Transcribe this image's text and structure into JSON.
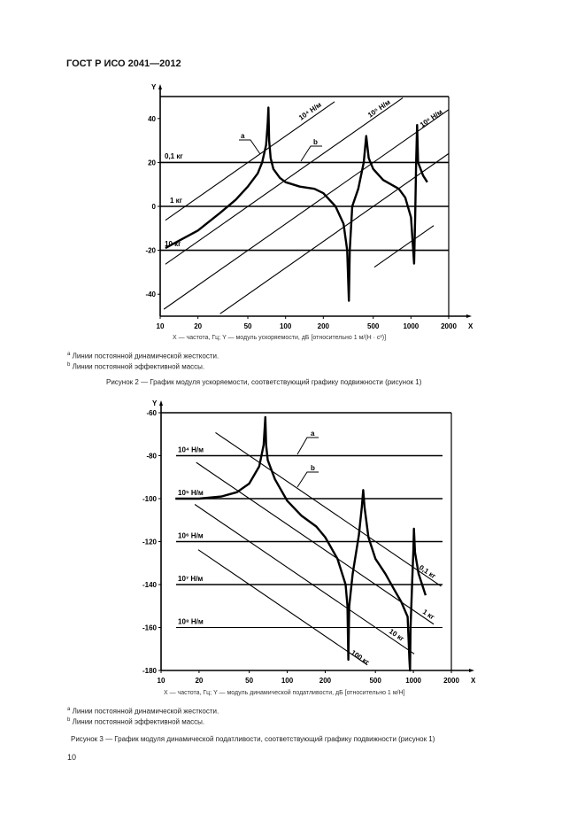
{
  "header": {
    "standard": "ГОСТ Р ИСО 2041—2012"
  },
  "figure2": {
    "axis_caption": "X — частота, Гц; Y — модуль ускоряемости, дБ [относительно 1 м/(Н · с²)]",
    "footnote_a_mark": "a",
    "footnote_a": "Линии постоянной динамической жесткости.",
    "footnote_b_mark": "b",
    "footnote_b": "Линии постоянной эффективной массы.",
    "caption": "Рисунок 2 — График модуля ускоряемости, соответствующий графику подвижности (рисунок 1)"
  },
  "figure3": {
    "axis_caption": "X — частота, Гц; Y — модуль динамической податливости, дБ [относительно 1 м/Н]",
    "footnote_a_mark": "a",
    "footnote_a": "Линии постоянной динамической жесткости.",
    "footnote_b_mark": "b",
    "footnote_b": "Линии постоянной эффективной массы.",
    "caption": "Рисунок 3 — График модуля динамической податливости, соответствующий графику подвижности (рисунок 1)"
  },
  "page_number": "10",
  "chart_data": [
    {
      "type": "line",
      "title": "Рисунок 2",
      "xlabel": "X",
      "ylabel": "Y",
      "xscale": "log",
      "xlim": [
        10,
        2000
      ],
      "ylim": [
        -50,
        50
      ],
      "xticks": [
        10,
        20,
        50,
        100,
        200,
        500,
        1000,
        2000
      ],
      "xtick_labels": [
        "10",
        "20",
        "50",
        "100",
        "200",
        "500",
        "1000",
        "2000"
      ],
      "yticks": [
        40,
        20,
        0,
        -20,
        -40
      ],
      "ytick_labels": [
        "40",
        "20",
        "0",
        "-20",
        "-40"
      ],
      "mass_lines": [
        {
          "label": "0,1 кг",
          "y": 20
        },
        {
          "label": "1 кг",
          "y": 0
        },
        {
          "label": "10 кг",
          "y": -20
        }
      ],
      "stiffness_lines": [
        {
          "label": "10⁴ Н/м",
          "slope_db_per_decade": 40,
          "offset": -48,
          "x_range": [
            11,
            246
          ]
        },
        {
          "label": "",
          "slope_db_per_decade": 40,
          "offset": -68,
          "x_range": [
            11,
            860
          ]
        },
        {
          "label": "10⁵ Н/м",
          "slope_db_per_decade": 40,
          "offset": -88,
          "x_range": [
            10.7,
            2000
          ]
        },
        {
          "label": "10⁶ Н/м",
          "slope_db_per_decade": 40,
          "offset": -108,
          "x_range": [
            30,
            2000
          ]
        },
        {
          "label": "",
          "slope_db_per_decade": 40,
          "offset": -136,
          "x_range": [
            510,
            1520
          ]
        }
      ],
      "callouts": [
        "a",
        "b"
      ],
      "series": [
        {
          "name": "accelerance",
          "points": [
            [
              11,
              -19
            ],
            [
              20,
              -11
            ],
            [
              30,
              -3
            ],
            [
              40,
              3
            ],
            [
              50,
              9
            ],
            [
              60,
              15
            ],
            [
              65,
              20
            ],
            [
              70,
              28
            ],
            [
              72,
              38
            ],
            [
              73,
              45
            ],
            [
              74,
              30
            ],
            [
              76,
              22
            ],
            [
              80,
              17
            ],
            [
              90,
              13
            ],
            [
              100,
              11
            ],
            [
              130,
              9
            ],
            [
              170,
              8
            ],
            [
              200,
              6
            ],
            [
              250,
              0
            ],
            [
              290,
              -8
            ],
            [
              310,
              -20
            ],
            [
              320,
              -43
            ],
            [
              325,
              -20
            ],
            [
              340,
              0
            ],
            [
              380,
              8
            ],
            [
              420,
              20
            ],
            [
              440,
              32
            ],
            [
              460,
              22
            ],
            [
              500,
              17
            ],
            [
              600,
              12
            ],
            [
              800,
              8
            ],
            [
              900,
              4
            ],
            [
              1000,
              -5
            ],
            [
              1060,
              -26
            ],
            [
              1080,
              -5
            ],
            [
              1100,
              20
            ],
            [
              1120,
              37
            ],
            [
              1140,
              20
            ],
            [
              1250,
              14
            ],
            [
              1350,
              11
            ]
          ]
        }
      ]
    },
    {
      "type": "line",
      "title": "Рисунок 3",
      "xlabel": "X",
      "ylabel": "Y",
      "xscale": "log",
      "xlim": [
        10,
        2000
      ],
      "ylim": [
        -180,
        -60
      ],
      "xticks": [
        10,
        20,
        50,
        100,
        200,
        500,
        1000,
        2000
      ],
      "xtick_labels": [
        "10",
        "20",
        "50",
        "100",
        "200",
        "500",
        "1000",
        "2000"
      ],
      "yticks": [
        -60,
        -80,
        -100,
        -120,
        -140,
        -160,
        -180
      ],
      "ytick_labels": [
        "-60",
        "-80",
        "-100",
        "-120",
        "-140",
        "-160",
        "-180"
      ],
      "stiffness_lines": [
        {
          "label": "10⁴ Н/м",
          "y": -80
        },
        {
          "label": "10⁵ Н/м",
          "y": -100
        },
        {
          "label": "10⁶ Н/м",
          "y": -120
        },
        {
          "label": "10⁷ Н/м",
          "y": -140
        },
        {
          "label": "10⁸ Н/м",
          "y": -160
        }
      ],
      "mass_lines": [
        {
          "label": "0,1 кг",
          "slope_db_per_decade": -40,
          "offset": -12,
          "x_range": [
            27,
            1660
          ]
        },
        {
          "label": "1 кг",
          "slope_db_per_decade": -40,
          "offset": -32,
          "x_range": [
            19,
            1450
          ]
        },
        {
          "label": "10 кг",
          "slope_db_per_decade": -40,
          "offset": -52,
          "x_range": [
            18.5,
            1016
          ]
        },
        {
          "label": "100 кг",
          "slope_db_per_decade": -40,
          "offset": -72,
          "x_range": [
            19.7,
            432
          ]
        }
      ],
      "callouts": [
        "a",
        "b"
      ],
      "series": [
        {
          "name": "compliance",
          "points": [
            [
              13,
              -100
            ],
            [
              20,
              -100
            ],
            [
              30,
              -99
            ],
            [
              40,
              -97
            ],
            [
              50,
              -93
            ],
            [
              60,
              -85
            ],
            [
              65,
              -75
            ],
            [
              67,
              -62
            ],
            [
              68,
              -75
            ],
            [
              70,
              -82
            ],
            [
              80,
              -91
            ],
            [
              100,
              -101
            ],
            [
              130,
              -108
            ],
            [
              170,
              -113
            ],
            [
              200,
              -118
            ],
            [
              250,
              -128
            ],
            [
              290,
              -140
            ],
            [
              300,
              -150
            ],
            [
              305,
              -175
            ],
            [
              310,
              -150
            ],
            [
              330,
              -135
            ],
            [
              370,
              -117
            ],
            [
              390,
              -104
            ],
            [
              400,
              -96
            ],
            [
              410,
              -104
            ],
            [
              440,
              -118
            ],
            [
              500,
              -128
            ],
            [
              600,
              -135
            ],
            [
              700,
              -142
            ],
            [
              800,
              -148
            ],
            [
              900,
              -155
            ],
            [
              930,
              -175
            ],
            [
              940,
              -180
            ],
            [
              950,
              -160
            ],
            [
              980,
              -138
            ],
            [
              1000,
              -124
            ],
            [
              1010,
              -114
            ],
            [
              1030,
              -125
            ],
            [
              1100,
              -135
            ],
            [
              1250,
              -145
            ]
          ]
        }
      ]
    }
  ]
}
